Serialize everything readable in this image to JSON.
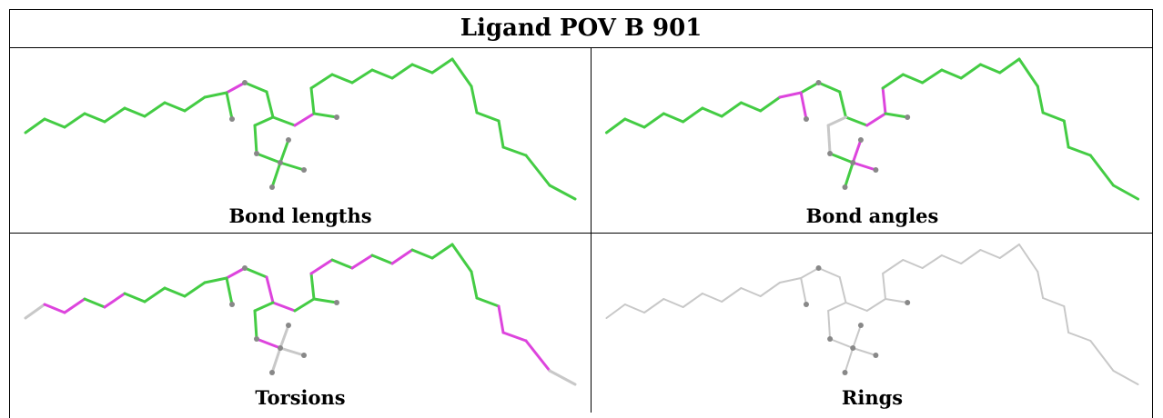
{
  "title": "Ligand POV B 901",
  "panels": [
    {
      "id": "bond-lengths",
      "caption": "Bond lengths"
    },
    {
      "id": "bond-angles",
      "caption": "Bond angles"
    },
    {
      "id": "torsions",
      "caption": "Torsions"
    },
    {
      "id": "rings",
      "caption": "Rings"
    }
  ],
  "colors": {
    "green": "#44cc44",
    "magenta": "#dd44dd",
    "grey": "#c8c8c8",
    "atom": "#888888"
  }
}
